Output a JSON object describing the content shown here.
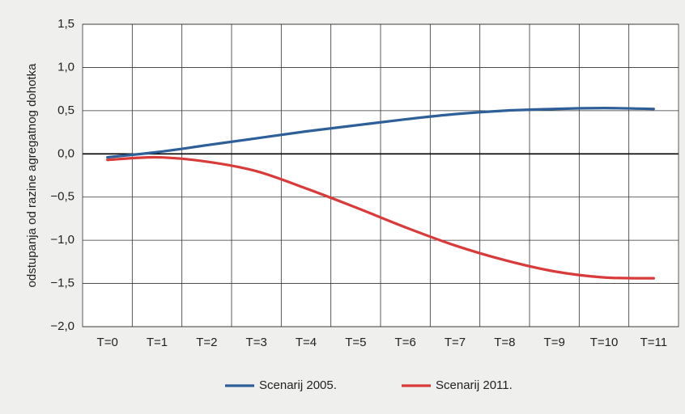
{
  "chart_data": {
    "type": "line",
    "y_label": "odstupanja od razine agregatnog dohotka",
    "categories": [
      "T=0",
      "T=1",
      "T=2",
      "T=3",
      "T=4",
      "T=5",
      "T=6",
      "T=7",
      "T=8",
      "T=9",
      "T=10",
      "T=11"
    ],
    "series": [
      {
        "name": "Scenarij 2005.",
        "color": "#2f5f98",
        "values": [
          -0.04,
          0.02,
          0.1,
          0.18,
          0.26,
          0.33,
          0.4,
          0.46,
          0.5,
          0.52,
          0.53,
          0.52
        ]
      },
      {
        "name": "Scenarij 2011.",
        "color": "#d93b3b",
        "values": [
          -0.07,
          -0.04,
          -0.09,
          -0.2,
          -0.4,
          -0.62,
          -0.85,
          -1.06,
          -1.23,
          -1.36,
          -1.43,
          -1.44
        ]
      }
    ],
    "ylim": [
      -2.0,
      1.5
    ],
    "yticks": [
      {
        "value": -2.0,
        "label": "−2,0"
      },
      {
        "value": -1.5,
        "label": "−1,5"
      },
      {
        "value": -1.0,
        "label": "−1,0"
      },
      {
        "value": -0.5,
        "label": "−0,5"
      },
      {
        "value": 0,
        "label": "0,0"
      },
      {
        "value": 0.5,
        "label": "0,5"
      },
      {
        "value": 1.0,
        "label": "1,0"
      },
      {
        "value": 1.5,
        "label": "1,5"
      }
    ],
    "grid": true,
    "legend": "bottom"
  }
}
